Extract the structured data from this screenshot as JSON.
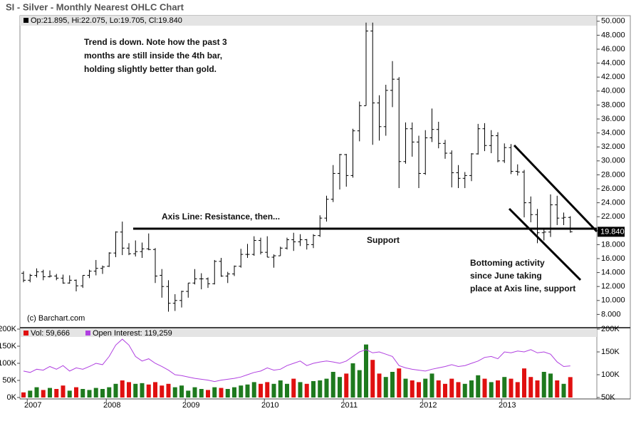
{
  "chart_data": [
    {
      "type": "ohlc",
      "title": "SI - Silver - Monthly Nearest OHLC Chart",
      "copyright": "(c) Barchart.com",
      "categories": [
        null,
        "2007",
        null,
        null,
        null,
        null,
        null,
        null,
        null,
        null,
        null,
        null,
        null,
        "2008",
        null,
        null,
        null,
        null,
        null,
        null,
        null,
        null,
        null,
        null,
        null,
        "2009",
        null,
        null,
        null,
        null,
        null,
        null,
        null,
        null,
        null,
        null,
        null,
        "2010",
        null,
        null,
        null,
        null,
        null,
        null,
        null,
        null,
        null,
        null,
        null,
        "2011",
        null,
        null,
        null,
        null,
        null,
        null,
        null,
        null,
        null,
        null,
        null,
        "2012",
        null,
        null,
        null,
        null,
        null,
        null,
        null,
        null,
        null,
        null,
        null,
        "2013",
        null,
        null,
        null,
        null,
        null,
        null,
        null,
        null,
        null,
        null
      ],
      "series": [
        {
          "name": "Op:21.895, Hi:22.075, Lo:19.705, Cl:19.840",
          "color": "#000000",
          "open": [
            13.9,
            12.9,
            13.6,
            14.1,
            13.4,
            13.5,
            13.2,
            12.5,
            12.9,
            12.1,
            13.6,
            14.2,
            14.6,
            14.9,
            16.8,
            19.8,
            17.5,
            16.7,
            17.0,
            17.4,
            17.3,
            13.6,
            12.0,
            9.6,
            10.0,
            11.3,
            12.5,
            13.1,
            13.1,
            12.4,
            15.6,
            13.5,
            13.8,
            14.9,
            16.6,
            16.6,
            18.6,
            16.9,
            16.2,
            16.4,
            17.5,
            18.7,
            18.4,
            18.7,
            18.0,
            19.3,
            21.8,
            24.5,
            28.2,
            30.9,
            27.9,
            34.3,
            37.9,
            48.6,
            38.3,
            34.9,
            40.1,
            41.7,
            29.9,
            34.6,
            32.7,
            28.2,
            33.3,
            34.5,
            32.5,
            31.1,
            28.3,
            27.5,
            27.9,
            31.0,
            34.6,
            32.2,
            33.6,
            30.0,
            31.9,
            28.5,
            28.4,
            24.0,
            22.3,
            19.7,
            19.8,
            23.7,
            21.8,
            21.895
          ],
          "high": [
            14.2,
            13.8,
            14.6,
            14.4,
            14.3,
            13.8,
            13.7,
            13.6,
            13.0,
            13.6,
            14.4,
            15.8,
            15.0,
            16.9,
            19.9,
            21.3,
            18.2,
            18.6,
            18.3,
            19.6,
            17.5,
            14.5,
            12.9,
            10.9,
            11.4,
            12.5,
            14.5,
            13.9,
            13.3,
            15.8,
            16.1,
            14.1,
            15.0,
            17.4,
            18.1,
            19.2,
            19.0,
            19.2,
            16.6,
            17.7,
            19.0,
            19.7,
            19.5,
            18.8,
            19.5,
            22.2,
            25.0,
            29.4,
            31.0,
            31.0,
            34.6,
            38.5,
            49.8,
            49.8,
            39.4,
            40.9,
            44.3,
            42.0,
            35.5,
            35.5,
            33.6,
            34.4,
            37.5,
            35.6,
            33.0,
            31.5,
            29.4,
            28.4,
            31.1,
            35.3,
            35.4,
            34.4,
            34.1,
            32.5,
            32.4,
            29.5,
            28.7,
            24.9,
            23.1,
            20.3,
            25.2,
            25.0,
            22.6,
            22.075
          ],
          "low": [
            12.6,
            12.6,
            13.3,
            12.9,
            13.3,
            12.9,
            12.4,
            12.4,
            11.3,
            11.8,
            13.2,
            13.6,
            13.8,
            14.8,
            16.2,
            16.5,
            16.5,
            16.3,
            16.1,
            17.2,
            12.5,
            10.4,
            8.4,
            8.5,
            9.0,
            10.4,
            12.3,
            11.6,
            11.8,
            12.3,
            13.4,
            12.5,
            13.5,
            14.7,
            16.1,
            16.4,
            16.6,
            16.2,
            14.7,
            16.4,
            17.3,
            17.1,
            17.8,
            17.3,
            17.5,
            19.1,
            21.3,
            24.1,
            25.9,
            26.3,
            27.6,
            32.8,
            37.9,
            32.3,
            32.9,
            33.6,
            37.7,
            26.1,
            29.6,
            30.6,
            26.1,
            28.0,
            32.7,
            31.8,
            30.3,
            26.2,
            26.1,
            26.1,
            27.1,
            30.9,
            31.4,
            31.1,
            29.8,
            29.7,
            28.1,
            27.9,
            21.9,
            21.2,
            18.2,
            18.6,
            19.1,
            20.8,
            20.8,
            19.705
          ],
          "close": [
            12.9,
            13.6,
            14.1,
            13.4,
            13.5,
            13.2,
            12.5,
            12.9,
            12.1,
            13.6,
            14.2,
            14.6,
            14.8,
            16.8,
            19.8,
            17.5,
            16.7,
            17.0,
            17.4,
            17.3,
            13.5,
            12.0,
            9.6,
            10.0,
            11.3,
            12.5,
            13.1,
            13.1,
            12.4,
            15.6,
            13.5,
            13.8,
            14.9,
            16.6,
            16.6,
            18.6,
            16.9,
            16.2,
            16.4,
            17.5,
            18.7,
            18.4,
            18.7,
            18.0,
            19.3,
            21.8,
            24.5,
            28.2,
            30.9,
            27.9,
            34.3,
            37.9,
            48.6,
            38.3,
            34.9,
            40.1,
            41.7,
            29.9,
            34.6,
            32.7,
            28.2,
            33.3,
            34.5,
            32.5,
            31.1,
            28.3,
            27.5,
            27.9,
            31.0,
            34.6,
            32.2,
            33.6,
            30.0,
            31.9,
            28.5,
            28.4,
            24.0,
            22.3,
            19.7,
            19.8,
            23.7,
            21.8,
            21.9,
            19.84
          ]
        }
      ],
      "ylim": [
        6.1,
        50.8
      ],
      "yticks": [
        {
          "value": 8,
          "label": "8.000"
        },
        {
          "value": 10,
          "label": "10.000"
        },
        {
          "value": 12,
          "label": "12.000"
        },
        {
          "value": 14,
          "label": "14.000"
        },
        {
          "value": 16,
          "label": "16.000"
        },
        {
          "value": 18,
          "label": "18.000"
        },
        {
          "value": 20,
          "label": "20.000"
        },
        {
          "value": 22,
          "label": "22.000"
        },
        {
          "value": 24,
          "label": "24.000"
        },
        {
          "value": 26,
          "label": "26.000"
        },
        {
          "value": 28,
          "label": "28.000"
        },
        {
          "value": 30,
          "label": "30.000"
        },
        {
          "value": 32,
          "label": "32.000"
        },
        {
          "value": 34,
          "label": "34.000"
        },
        {
          "value": 36,
          "label": "36.000"
        },
        {
          "value": 38,
          "label": "38.000"
        },
        {
          "value": 40,
          "label": "40.000"
        },
        {
          "value": 42,
          "label": "42.000"
        },
        {
          "value": 44,
          "label": "44.000"
        },
        {
          "value": 46,
          "label": "46.000"
        },
        {
          "value": 48,
          "label": "48.000"
        },
        {
          "value": 50,
          "label": "50.000"
        }
      ],
      "last_price": {
        "value": 19.84,
        "label": "19.840"
      },
      "annotations": [
        "Trend is down.  Note how the past 3",
        "months are still inside the 4th bar,",
        "holding slightly better than gold.",
        "Axis Line:  Resistance, then...",
        "Support",
        "Bottoming activity",
        "since June taking",
        "place at Axis line, support"
      ]
    },
    {
      "type": "volume",
      "up_color": "#1e7a1e",
      "down_color": "#e01010",
      "series": [
        {
          "name": "Vol: 59,666",
          "values": [
            15000,
            20000,
            30000,
            22000,
            28000,
            25000,
            35000,
            20000,
            30000,
            25000,
            22000,
            28000,
            25000,
            30000,
            40000,
            50000,
            45000,
            40000,
            42000,
            38000,
            45000,
            35000,
            40000,
            30000,
            35000,
            20000,
            30000,
            25000,
            22000,
            30000,
            28000,
            25000,
            30000,
            35000,
            38000,
            45000,
            40000,
            45000,
            40000,
            50000,
            40000,
            55000,
            45000,
            40000,
            48000,
            50000,
            55000,
            75000,
            60000,
            70000,
            100000,
            80000,
            155000,
            110000,
            70000,
            60000,
            75000,
            85000,
            55000,
            50000,
            45000,
            55000,
            70000,
            50000,
            40000,
            55000,
            45000,
            40000,
            50000,
            65000,
            55000,
            45000,
            50000,
            60000,
            55000,
            45000,
            85000,
            60000,
            50000,
            75000,
            70000,
            50000,
            40000,
            59666
          ],
          "color": "#e01010"
        },
        {
          "name": "Open Interest: 119,259",
          "axis": "y2",
          "color": "#b040e0",
          "values": [
            108000,
            105000,
            112000,
            110000,
            118000,
            112000,
            120000,
            108000,
            115000,
            112000,
            118000,
            125000,
            122000,
            140000,
            165000,
            178000,
            165000,
            140000,
            130000,
            135000,
            125000,
            118000,
            110000,
            100000,
            98000,
            95000,
            92000,
            90000,
            88000,
            85000,
            88000,
            90000,
            92000,
            95000,
            100000,
            105000,
            108000,
            115000,
            110000,
            112000,
            120000,
            125000,
            130000,
            120000,
            125000,
            128000,
            130000,
            128000,
            125000,
            130000,
            140000,
            150000,
            155000,
            148000,
            150000,
            145000,
            140000,
            120000,
            115000,
            112000,
            110000,
            108000,
            112000,
            115000,
            118000,
            122000,
            118000,
            120000,
            125000,
            130000,
            138000,
            140000,
            135000,
            150000,
            148000,
            152000,
            150000,
            155000,
            148000,
            150000,
            145000,
            128000,
            118000,
            119259
          ]
        }
      ],
      "ylim": [
        0,
        200000
      ],
      "yticks": [
        {
          "value": 0,
          "label": "0K"
        },
        {
          "value": 50000,
          "label": "50K"
        },
        {
          "value": 100000,
          "label": "100K"
        },
        {
          "value": 150000,
          "label": "150K"
        },
        {
          "value": 200000,
          "label": "200K"
        }
      ],
      "y2lim": [
        50000,
        200000
      ],
      "y2ticks": [
        {
          "value": 50000,
          "label": "50K"
        },
        {
          "value": 100000,
          "label": "100K"
        },
        {
          "value": 150000,
          "label": "150K"
        },
        {
          "value": 200000,
          "label": "200K"
        }
      ]
    }
  ]
}
